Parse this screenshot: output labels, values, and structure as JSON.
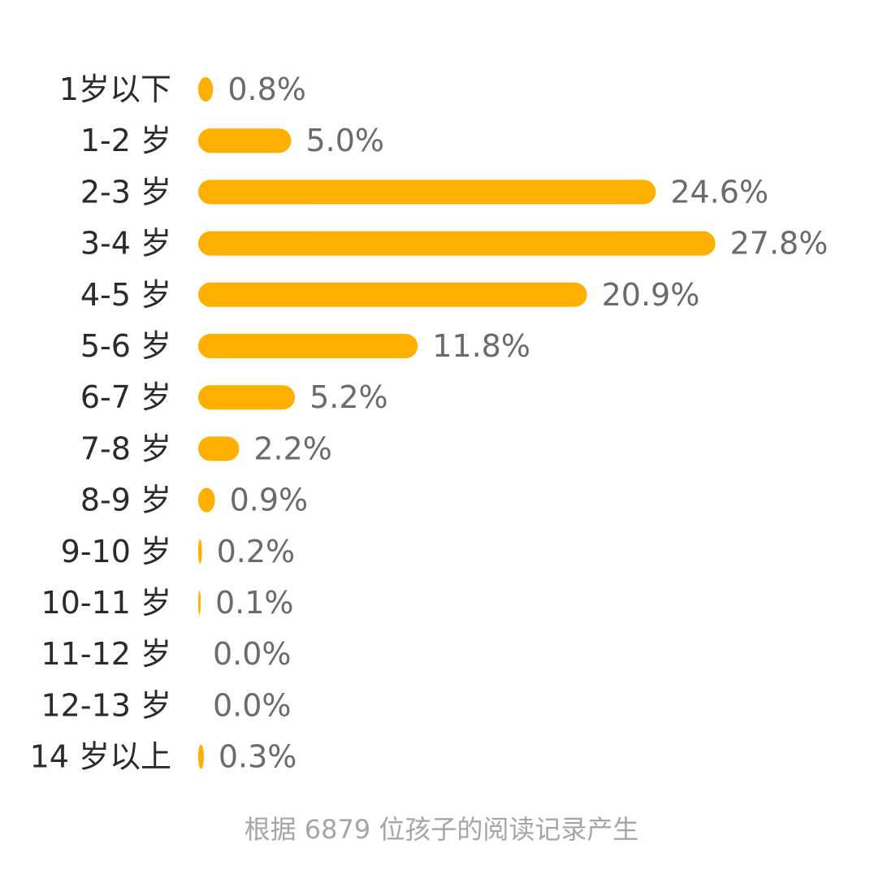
{
  "chart_data": {
    "type": "bar",
    "orientation": "horizontal",
    "categories": [
      "1岁以下",
      "1-2 岁",
      "2-3 岁",
      "3-4 岁",
      "4-5 岁",
      "5-6 岁",
      "6-7 岁",
      "7-8 岁",
      "8-9 岁",
      "9-10 岁",
      "10-11 岁",
      "11-12 岁",
      "12-13 岁",
      "14 岁以上"
    ],
    "values": [
      0.8,
      5.0,
      24.6,
      27.8,
      20.9,
      11.8,
      5.2,
      2.2,
      0.9,
      0.2,
      0.1,
      0.0,
      0.0,
      0.3
    ],
    "value_labels": [
      "0.8%",
      "5.0%",
      "24.6%",
      "27.8%",
      "20.9%",
      "11.8%",
      "5.2%",
      "2.2%",
      "0.9%",
      "0.2%",
      "0.1%",
      "0.0%",
      "0.0%",
      "0.3%"
    ],
    "unit": "%",
    "title": "",
    "xlabel": "",
    "ylabel": "",
    "grid": false,
    "bar_color": "#FFAF00"
  },
  "footnote": "根据 6879 位孩子的阅读记录产生"
}
